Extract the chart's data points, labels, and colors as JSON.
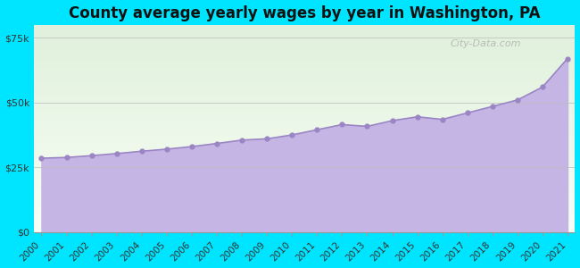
{
  "title": "County average yearly wages by year in Washington, PA",
  "years": [
    2000,
    2001,
    2002,
    2003,
    2004,
    2005,
    2006,
    2007,
    2008,
    2009,
    2010,
    2011,
    2012,
    2013,
    2014,
    2015,
    2016,
    2017,
    2018,
    2019,
    2020,
    2021
  ],
  "wages": [
    28500,
    28800,
    29500,
    30300,
    31200,
    32000,
    33000,
    34200,
    35500,
    36000,
    37500,
    39500,
    41500,
    40800,
    43000,
    44500,
    43500,
    46000,
    48500,
    51000,
    56000,
    67000
  ],
  "ylim": [
    0,
    80000
  ],
  "yticks": [
    0,
    25000,
    50000,
    75000
  ],
  "ytick_labels": [
    "$0",
    "$25k",
    "$50k",
    "$75k"
  ],
  "fill_color": "#c5b5e5",
  "line_color": "#9b85c4",
  "marker_color": "#9b85c4",
  "outer_bg": "#00e5ff",
  "watermark": "City-Data.com",
  "title_fontsize": 12,
  "tick_fontsize": 8
}
